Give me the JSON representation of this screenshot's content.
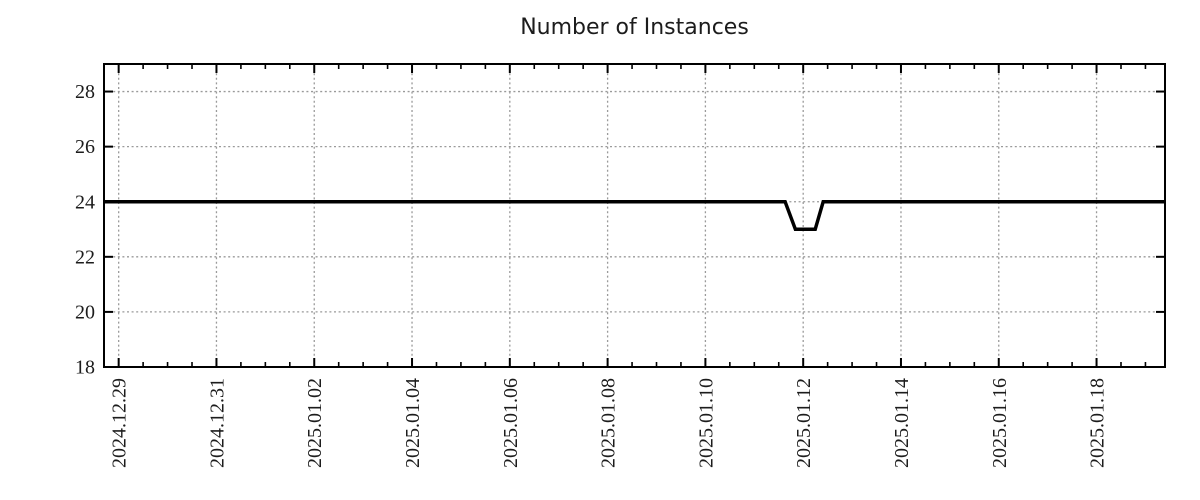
{
  "chart_data": {
    "type": "line",
    "title": "Number of Instances",
    "xlabel": "",
    "ylabel": "",
    "legend": "none",
    "grid": "dotted",
    "x_axis": {
      "tick_labels": [
        "2024.12.29",
        "2024.12.31",
        "2025.01.02",
        "2025.01.04",
        "2025.01.06",
        "2025.01.08",
        "2025.01.10",
        "2025.01.12",
        "2025.01.14",
        "2025.01.16",
        "2025.01.18"
      ],
      "tick_days": [
        0,
        2,
        4,
        6,
        8,
        10,
        12,
        14,
        16,
        18,
        20
      ],
      "minor_tick_step_days": 0.5,
      "range_days": [
        -0.3,
        21.4
      ],
      "epoch_of_day_zero": "2024.12.29"
    },
    "y_axis": {
      "ticks": [
        18,
        20,
        22,
        24,
        26,
        28
      ],
      "lim": [
        18,
        29
      ]
    },
    "colors": {
      "line": "#000000",
      "grid": "#9a9a9a",
      "axis": "#000000",
      "text": "#1c1c1c",
      "background": "#ffffff"
    },
    "series": [
      {
        "name": "Number of Instances",
        "points_day_value": [
          [
            -0.3,
            24
          ],
          [
            13.63,
            24
          ],
          [
            13.84,
            23
          ],
          [
            14.245,
            23
          ],
          [
            14.41,
            24
          ],
          [
            21.4,
            24
          ]
        ]
      }
    ]
  }
}
